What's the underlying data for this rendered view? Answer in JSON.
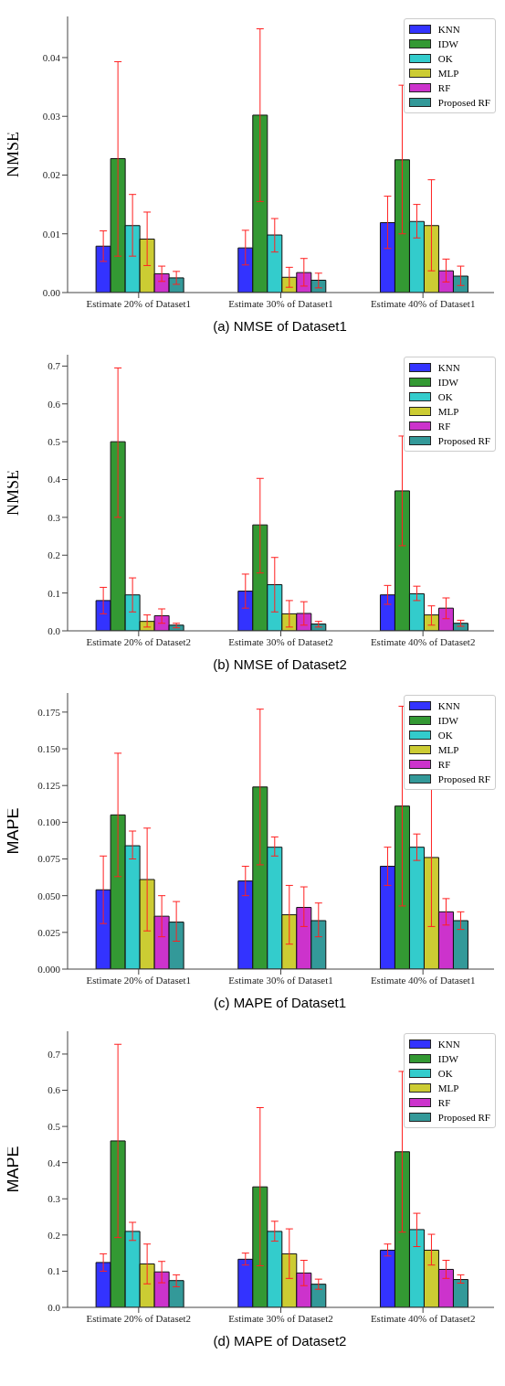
{
  "chart_data": [
    {
      "type": "bar",
      "title": "(a) NMSE of Dataset1",
      "ylabel": "NMSE",
      "categories": [
        "Estimate 20% of Dataset1",
        "Estimate 30% of Dataset1",
        "Estimate 40% of Dataset1"
      ],
      "ylim": [
        0,
        0.047
      ],
      "yticks": [
        {
          "value": 0,
          "label": "0.00"
        },
        {
          "value": 0.01,
          "label": "0.01"
        },
        {
          "value": 0.02,
          "label": "0.02"
        },
        {
          "value": 0.03,
          "label": "0.03"
        },
        {
          "value": 0.04,
          "label": "0.04"
        }
      ],
      "legend": "top right",
      "grid": false,
      "series": [
        {
          "name": "KNN",
          "color": "#3333ff",
          "values": [
            0.0079,
            0.0076,
            0.0119
          ],
          "errors": [
            [
              0.0053,
              0.0105
            ],
            [
              0.0047,
              0.0106
            ],
            [
              0.0075,
              0.0164
            ]
          ]
        },
        {
          "name": "IDW",
          "color": "#339933",
          "values": [
            0.0228,
            0.0302,
            0.0226
          ],
          "errors": [
            [
              0.0062,
              0.0393
            ],
            [
              0.0155,
              0.0449
            ],
            [
              0.01,
              0.0353
            ]
          ]
        },
        {
          "name": "OK",
          "color": "#33cccc",
          "values": [
            0.0114,
            0.0098,
            0.0121
          ],
          "errors": [
            [
              0.0062,
              0.0167
            ],
            [
              0.0069,
              0.0126
            ],
            [
              0.0093,
              0.015
            ]
          ]
        },
        {
          "name": "MLP",
          "color": "#cccc33",
          "values": [
            0.0091,
            0.0026,
            0.0114
          ],
          "errors": [
            [
              0.0046,
              0.0137
            ],
            [
              0.0009,
              0.0043
            ],
            [
              0.0037,
              0.0192
            ]
          ]
        },
        {
          "name": "RF",
          "color": "#cc33cc",
          "values": [
            0.0032,
            0.0034,
            0.0037
          ],
          "errors": [
            [
              0.0019,
              0.0045
            ],
            [
              0.0011,
              0.0058
            ],
            [
              0.0018,
              0.0057
            ]
          ]
        },
        {
          "name": "Proposed RF",
          "color": "#339999",
          "values": [
            0.0025,
            0.0021,
            0.0028
          ],
          "errors": [
            [
              0.0014,
              0.0036
            ],
            [
              0.0008,
              0.0033
            ],
            [
              0.0012,
              0.0045
            ]
          ]
        }
      ]
    },
    {
      "type": "bar",
      "title": "(b) NMSE of Dataset2",
      "ylabel": "NMSE",
      "categories": [
        "Estimate 20% of Dataset2",
        "Estimate 30% of Dataset2",
        "Estimate 40% of Dataset2"
      ],
      "ylim": [
        0,
        0.73
      ],
      "yticks": [
        {
          "value": 0,
          "label": "0.0"
        },
        0.1,
        0.2,
        0.3,
        0.4,
        0.5,
        0.6,
        0.7
      ],
      "legend": "top right",
      "grid": false,
      "series": [
        {
          "name": "KNN",
          "color": "#3333ff",
          "values": [
            0.08,
            0.105,
            0.095
          ],
          "errors": [
            [
              0.045,
              0.115
            ],
            [
              0.06,
              0.15
            ],
            [
              0.07,
              0.12
            ]
          ]
        },
        {
          "name": "IDW",
          "color": "#339933",
          "values": [
            0.5,
            0.28,
            0.37
          ],
          "errors": [
            [
              0.3,
              0.695
            ],
            [
              0.153,
              0.403
            ],
            [
              0.225,
              0.515
            ]
          ]
        },
        {
          "name": "OK",
          "color": "#33cccc",
          "values": [
            0.095,
            0.122,
            0.098
          ],
          "errors": [
            [
              0.05,
              0.14
            ],
            [
              0.05,
              0.194
            ],
            [
              0.08,
              0.118
            ]
          ]
        },
        {
          "name": "MLP",
          "color": "#cccc33",
          "values": [
            0.025,
            0.045,
            0.042
          ],
          "errors": [
            [
              0.01,
              0.042
            ],
            [
              0.01,
              0.08
            ],
            [
              0.015,
              0.066
            ]
          ]
        },
        {
          "name": "RF",
          "color": "#cc33cc",
          "values": [
            0.04,
            0.046,
            0.06
          ],
          "errors": [
            [
              0.02,
              0.058
            ],
            [
              0.015,
              0.077
            ],
            [
              0.032,
              0.087
            ]
          ]
        },
        {
          "name": "Proposed RF",
          "color": "#339999",
          "values": [
            0.015,
            0.018,
            0.02
          ],
          "errors": [
            [
              0.008,
              0.02
            ],
            [
              0.01,
              0.025
            ],
            [
              0.012,
              0.028
            ]
          ]
        }
      ]
    },
    {
      "type": "bar",
      "title": "(c) MAPE of Dataset1",
      "ylabel": "MAPE",
      "categories": [
        "Estimate 20% of Dataset1",
        "Estimate 30% of Dataset1",
        "Estimate 40% of Dataset1"
      ],
      "ylim": [
        0,
        0.188
      ],
      "yticks": [
        {
          "value": 0,
          "label": "0.000"
        },
        {
          "value": 0.025,
          "label": "0.025"
        },
        {
          "value": 0.05,
          "label": "0.050"
        },
        {
          "value": 0.075,
          "label": "0.075"
        },
        {
          "value": 0.1,
          "label": "0.100"
        },
        {
          "value": 0.125,
          "label": "0.125"
        },
        {
          "value": 0.15,
          "label": "0.150"
        },
        {
          "value": 0.175,
          "label": "0.175"
        }
      ],
      "legend": "top right",
      "grid": false,
      "series": [
        {
          "name": "KNN",
          "color": "#3333ff",
          "values": [
            0.054,
            0.06,
            0.07
          ],
          "errors": [
            [
              0.031,
              0.077
            ],
            [
              0.05,
              0.07
            ],
            [
              0.057,
              0.083
            ]
          ]
        },
        {
          "name": "IDW",
          "color": "#339933",
          "values": [
            0.105,
            0.124,
            0.111
          ],
          "errors": [
            [
              0.063,
              0.147
            ],
            [
              0.071,
              0.177
            ],
            [
              0.043,
              0.179
            ]
          ]
        },
        {
          "name": "OK",
          "color": "#33cccc",
          "values": [
            0.084,
            0.083,
            0.083
          ],
          "errors": [
            [
              0.075,
              0.094
            ],
            [
              0.077,
              0.09
            ],
            [
              0.074,
              0.092
            ]
          ]
        },
        {
          "name": "MLP",
          "color": "#cccc33",
          "values": [
            0.061,
            0.037,
            0.076
          ],
          "errors": [
            [
              0.026,
              0.096
            ],
            [
              0.017,
              0.057
            ],
            [
              0.029,
              0.123
            ]
          ]
        },
        {
          "name": "RF",
          "color": "#cc33cc",
          "values": [
            0.036,
            0.042,
            0.039
          ],
          "errors": [
            [
              0.022,
              0.05
            ],
            [
              0.029,
              0.056
            ],
            [
              0.03,
              0.048
            ]
          ]
        },
        {
          "name": "Proposed RF",
          "color": "#339999",
          "values": [
            0.032,
            0.033,
            0.033
          ],
          "errors": [
            [
              0.019,
              0.046
            ],
            [
              0.022,
              0.045
            ],
            [
              0.027,
              0.039
            ]
          ]
        }
      ]
    },
    {
      "type": "bar",
      "title": "(d) MAPE of Dataset2",
      "ylabel": "MAPE",
      "categories": [
        "Estimate 20% of Dataset2",
        "Estimate 30% of Dataset2",
        "Estimate 40% of Dataset2"
      ],
      "ylim": [
        0,
        0.763
      ],
      "yticks": [
        {
          "value": 0,
          "label": "0.0"
        },
        0.1,
        0.2,
        0.3,
        0.4,
        0.5,
        0.6,
        0.7
      ],
      "legend": "top right",
      "grid": false,
      "series": [
        {
          "name": "KNN",
          "color": "#3333ff",
          "values": [
            0.124,
            0.133,
            0.158
          ],
          "errors": [
            [
              0.1,
              0.148
            ],
            [
              0.117,
              0.15
            ],
            [
              0.142,
              0.175
            ]
          ]
        },
        {
          "name": "IDW",
          "color": "#339933",
          "values": [
            0.46,
            0.333,
            0.43
          ],
          "errors": [
            [
              0.193,
              0.727
            ],
            [
              0.115,
              0.552
            ],
            [
              0.208,
              0.652
            ]
          ]
        },
        {
          "name": "OK",
          "color": "#33cccc",
          "values": [
            0.21,
            0.21,
            0.215
          ],
          "errors": [
            [
              0.185,
              0.235
            ],
            [
              0.183,
              0.238
            ],
            [
              0.168,
              0.26
            ]
          ]
        },
        {
          "name": "MLP",
          "color": "#cccc33",
          "values": [
            0.12,
            0.148,
            0.158
          ],
          "errors": [
            [
              0.065,
              0.175
            ],
            [
              0.08,
              0.217
            ],
            [
              0.117,
              0.202
            ]
          ]
        },
        {
          "name": "RF",
          "color": "#cc33cc",
          "values": [
            0.098,
            0.095,
            0.105
          ],
          "errors": [
            [
              0.068,
              0.127
            ],
            [
              0.06,
              0.13
            ],
            [
              0.08,
              0.13
            ]
          ]
        },
        {
          "name": "Proposed RF",
          "color": "#339999",
          "values": [
            0.074,
            0.064,
            0.077
          ],
          "errors": [
            [
              0.057,
              0.09
            ],
            [
              0.05,
              0.078
            ],
            [
              0.067,
              0.09
            ]
          ]
        }
      ]
    }
  ]
}
